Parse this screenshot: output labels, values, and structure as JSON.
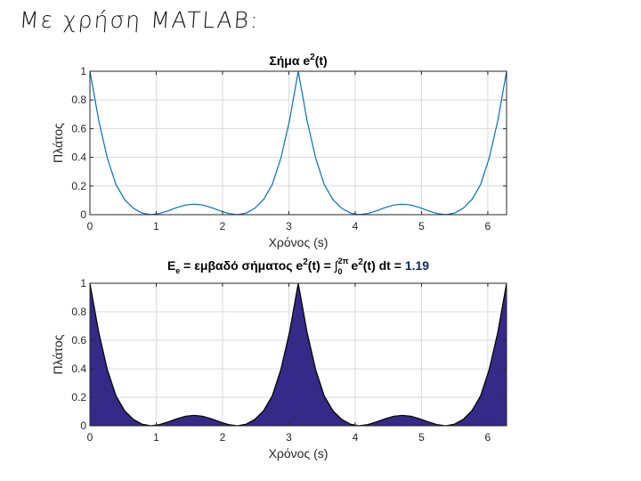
{
  "slide_heading": "Με χρήση MATLAB:",
  "colors": {
    "line": "#0072BD",
    "fill": "#352A87",
    "grid": "#DADADA",
    "axis": "#262626"
  },
  "chart_data": [
    {
      "type": "line",
      "title_main": "Σήμα e",
      "title_sup": "2",
      "title_tail": "(t)",
      "xlabel": "Χρόνος (s)",
      "ylabel": "Πλάτος",
      "xlim": [
        0,
        6.2832
      ],
      "ylim": [
        0,
        1
      ],
      "xticks": [
        "0",
        "1",
        "2",
        "3",
        "4",
        "5",
        "6"
      ],
      "yticks": [
        "0",
        "0.2",
        "0.4",
        "0.6",
        "0.8",
        "1"
      ],
      "grid": true,
      "x_step": 0.1309,
      "values": [
        1,
        0.66,
        0.395,
        0.21,
        0.105,
        0.045,
        0.011,
        0,
        0.008,
        0.027,
        0.049,
        0.067,
        0.073,
        0.067,
        0.049,
        0.027,
        0.008,
        0,
        0.011,
        0.045,
        0.105,
        0.21,
        0.395,
        0.66,
        1,
        0.66,
        0.395,
        0.21,
        0.105,
        0.045,
        0.011,
        0,
        0.008,
        0.027,
        0.049,
        0.067,
        0.073,
        0.067,
        0.049,
        0.027,
        0.008,
        0,
        0.011,
        0.045,
        0.105,
        0.21,
        0.395,
        0.66,
        1
      ]
    },
    {
      "type": "area",
      "title_parts": {
        "E": "E",
        "e_sub": "e",
        "eq1": " = εμβαδό σήματος e",
        "sup1": "2",
        "t1": "(t) = ",
        "int": "∫",
        "int_lo": "0",
        "int_hi": "2π",
        "body": " e",
        "sup2": "2",
        "t2": "(t) dt ",
        "eq2": " = ",
        "value": "1.19"
      },
      "xlabel": "Χρόνος (s)",
      "ylabel": "Πλάτος",
      "xlim": [
        0,
        6.2832
      ],
      "ylim": [
        0,
        1
      ],
      "xticks": [
        "0",
        "1",
        "2",
        "3",
        "4",
        "5",
        "6"
      ],
      "yticks": [
        "0",
        "0.2",
        "0.4",
        "0.6",
        "0.8",
        "1"
      ],
      "grid": true,
      "area_value": 1.19
    }
  ]
}
